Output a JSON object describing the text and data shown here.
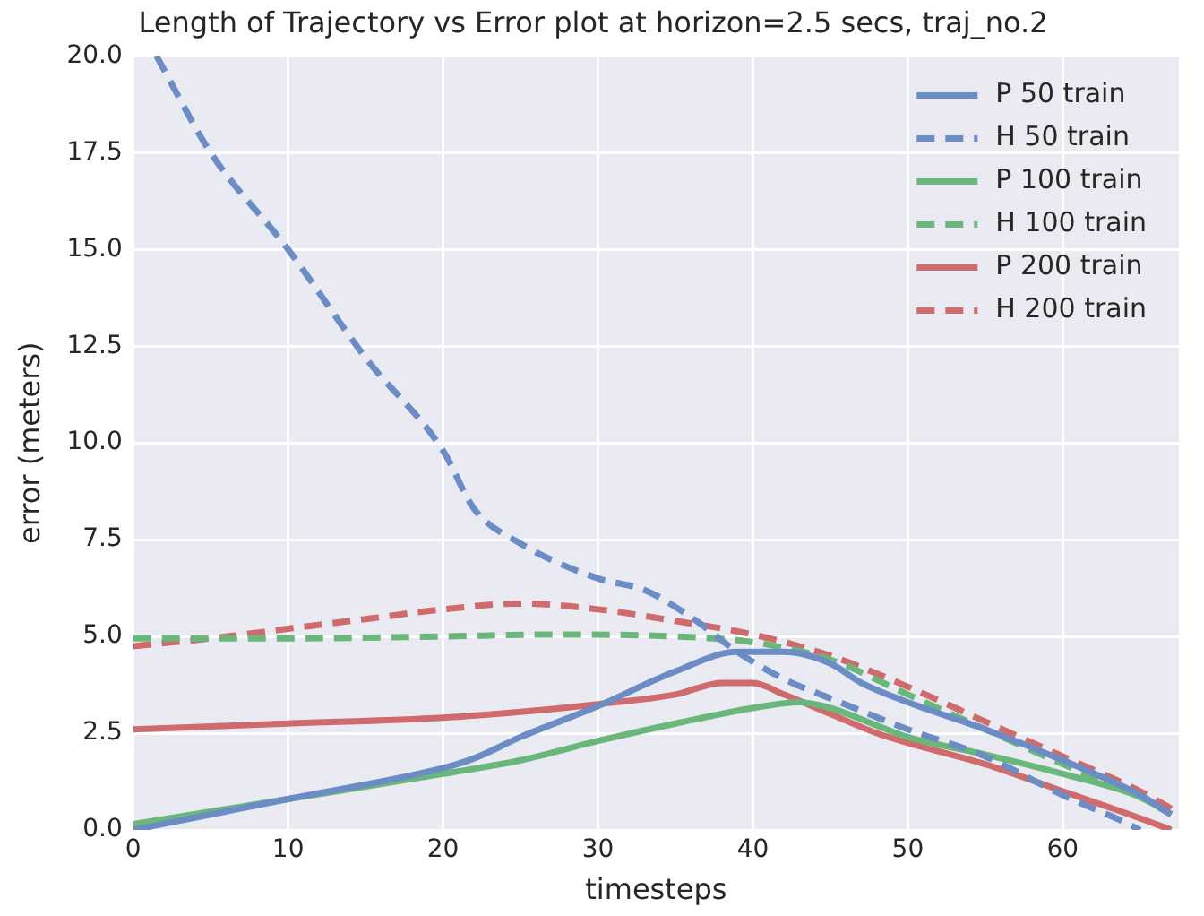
{
  "chart_data": {
    "type": "line",
    "title": "Length of Trajectory vs Error plot at horizon=2.5 secs, traj_no.2",
    "xlabel": "timesteps",
    "ylabel": "error (meters)",
    "xlim": [
      0,
      67.5
    ],
    "xticks": [
      0,
      10,
      20,
      30,
      40,
      50,
      60
    ],
    "ylim": [
      0,
      20
    ],
    "yticks": [
      {
        "value": 0,
        "label": "0.0"
      },
      2.5,
      {
        "value": 5,
        "label": "5.0"
      },
      7.5,
      {
        "value": 10,
        "label": "10.0"
      },
      12.5,
      {
        "value": 15,
        "label": "15.0"
      },
      17.5,
      {
        "value": 20,
        "label": "20.0"
      }
    ],
    "grid": true,
    "legend": "top right",
    "marker": "none",
    "series": [
      {
        "name": "P 50 train",
        "color": "#6b8cc4",
        "line_style": "solid",
        "x": [
          0,
          10,
          20,
          22,
          25,
          30,
          35,
          39,
          42,
          45,
          47,
          50,
          55,
          60,
          65,
          67
        ],
        "values": [
          0,
          0.8,
          1.6,
          1.85,
          2.4,
          3.2,
          4.1,
          4.6,
          4.6,
          4.3,
          3.8,
          3.3,
          2.6,
          1.8,
          0.9,
          0.4
        ]
      },
      {
        "name": "H 50 train",
        "color": "#6b8cc4",
        "line_style": "dashed",
        "x": [
          1.5,
          5,
          10,
          15,
          20,
          22,
          25,
          30,
          33,
          36,
          39,
          42,
          45,
          50,
          55,
          60,
          64,
          65
        ],
        "values": [
          20,
          17.5,
          15,
          12.2,
          9.8,
          8.3,
          7.4,
          6.5,
          6.2,
          5.5,
          4.6,
          3.9,
          3.4,
          2.6,
          1.9,
          0.9,
          0.2,
          0
        ]
      },
      {
        "name": "P 100 train",
        "color": "#6ab77c",
        "line_style": "solid",
        "x": [
          0,
          10,
          20,
          25,
          30,
          35,
          40,
          43,
          45,
          48,
          50,
          55,
          60,
          65,
          67
        ],
        "values": [
          0.15,
          0.8,
          1.45,
          1.8,
          2.3,
          2.75,
          3.15,
          3.3,
          3.15,
          2.7,
          2.4,
          1.95,
          1.45,
          0.85,
          0.4
        ]
      },
      {
        "name": "H 100 train",
        "color": "#6ab77c",
        "line_style": "dashed",
        "x": [
          0,
          10,
          20,
          27,
          35,
          40,
          45,
          50,
          55,
          60,
          65,
          67
        ],
        "values": [
          4.95,
          4.95,
          5,
          5.05,
          5,
          4.85,
          4.4,
          3.5,
          2.6,
          1.7,
          0.85,
          0.4
        ]
      },
      {
        "name": "P 200 train",
        "color": "#cf6a6d",
        "line_style": "solid",
        "x": [
          0,
          10,
          20,
          25,
          30,
          35,
          38,
          40,
          42,
          45,
          48,
          50,
          55,
          60,
          65,
          67
        ],
        "values": [
          2.6,
          2.75,
          2.9,
          3.05,
          3.25,
          3.5,
          3.8,
          3.8,
          3.5,
          3,
          2.5,
          2.25,
          1.7,
          1,
          0.3,
          0
        ]
      },
      {
        "name": "H 200 train",
        "color": "#cf6a6d",
        "line_style": "dashed",
        "x": [
          0,
          5,
          10,
          15,
          20,
          25,
          30,
          35,
          40,
          45,
          50,
          55,
          60,
          65,
          67
        ],
        "values": [
          4.75,
          4.95,
          5.2,
          5.45,
          5.7,
          5.85,
          5.7,
          5.4,
          5.05,
          4.5,
          3.7,
          2.8,
          1.9,
          1,
          0.55
        ]
      }
    ]
  }
}
